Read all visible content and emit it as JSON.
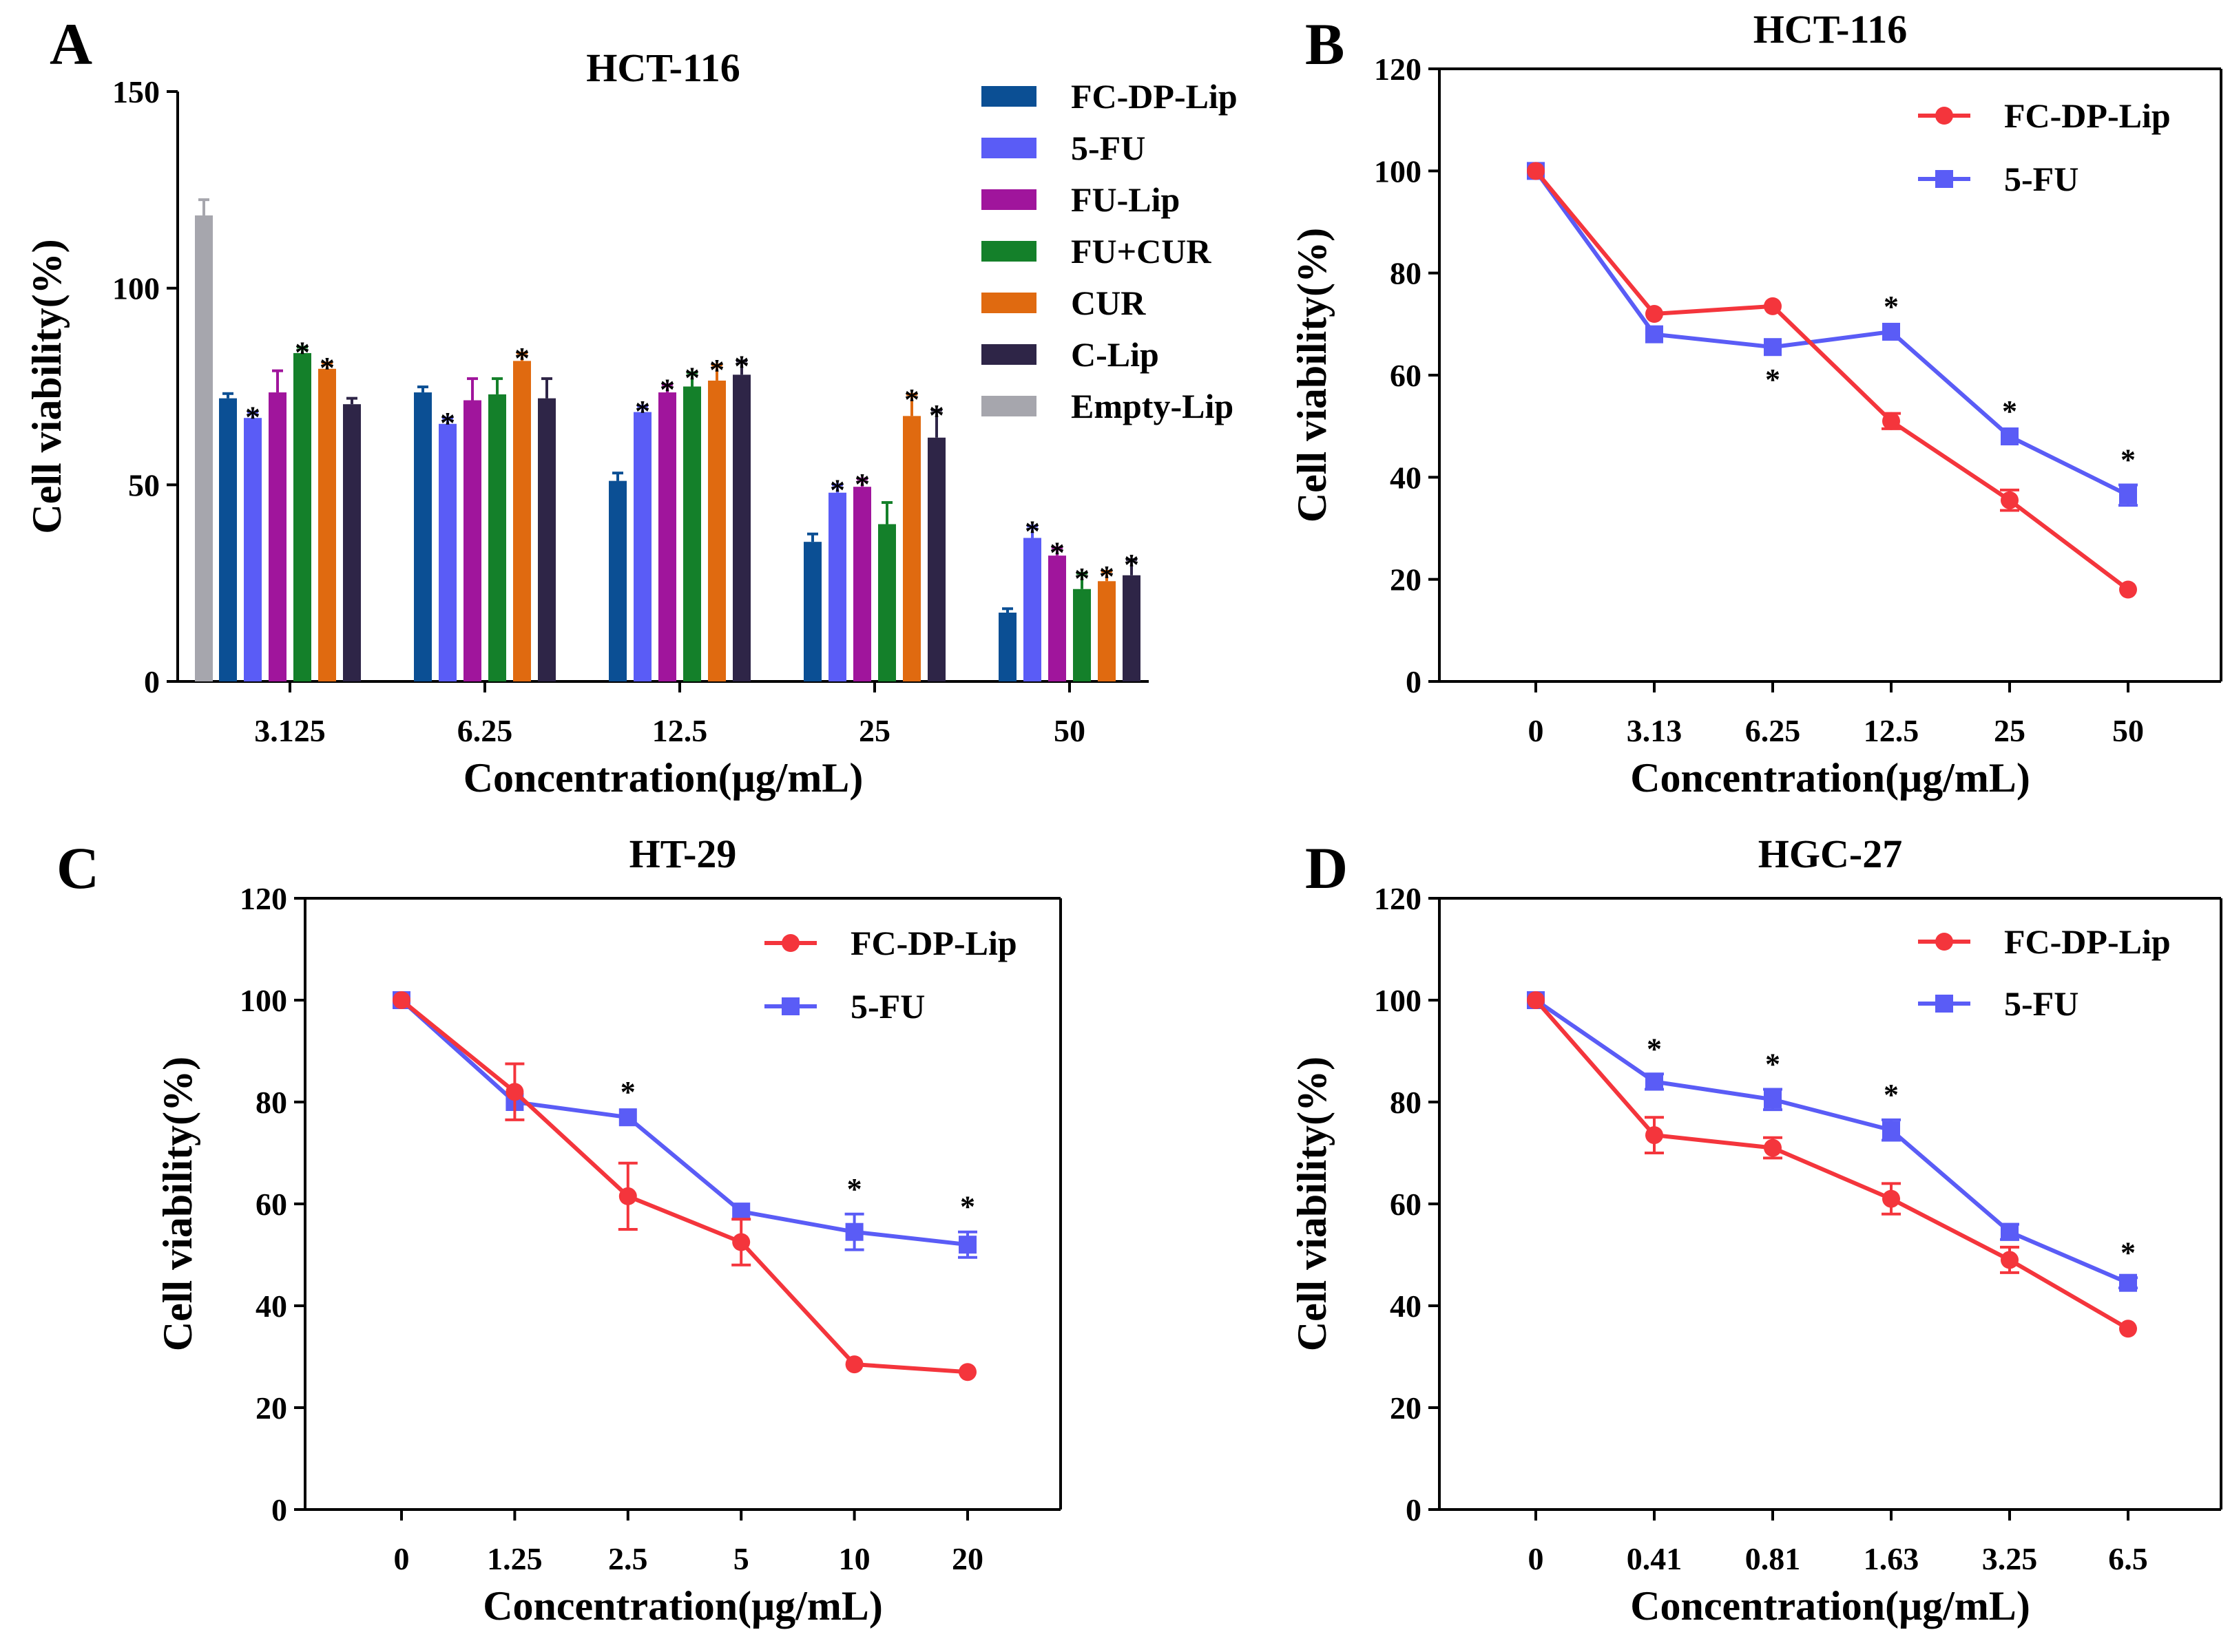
{
  "chart_data": [
    {
      "panel": "A",
      "type": "bar",
      "title": "HCT-116",
      "xlabel": "Concentration(μg/mL)",
      "ylabel": "Cell viability(%)",
      "ylim": [
        0,
        150
      ],
      "yticks": [
        0,
        50,
        100,
        150
      ],
      "categories": [
        "3.125",
        "6.25",
        "12.5",
        "25",
        "50"
      ],
      "legend_position": "top-right",
      "series": [
        {
          "name": "FC-DP-Lip",
          "color": "#0b4f94",
          "values": [
            72,
            73.5,
            51,
            35.5,
            17.5
          ],
          "errors": [
            1.2,
            1.4,
            2,
            2,
            1
          ],
          "significant": [
            false,
            false,
            false,
            false,
            false
          ]
        },
        {
          "name": "5-FU",
          "color": "#5a5cf6",
          "values": [
            67,
            65.5,
            68.5,
            48,
            36.5
          ],
          "errors": [
            1.5,
            1.5,
            1.5,
            2,
            3
          ],
          "significant": [
            true,
            true,
            true,
            true,
            true
          ]
        },
        {
          "name": "FU-Lip",
          "color": "#a0159c",
          "values": [
            73.5,
            71.5,
            73.5,
            49.5,
            32
          ],
          "errors": [
            5.5,
            5.5,
            2,
            2,
            2
          ],
          "significant": [
            false,
            false,
            true,
            true,
            true
          ]
        },
        {
          "name": "FU+CUR",
          "color": "#14802a",
          "values": [
            83.5,
            73,
            75,
            40,
            23.5
          ],
          "errors": [
            1.5,
            4,
            3.5,
            5.5,
            4
          ],
          "significant": [
            true,
            false,
            true,
            false,
            true
          ]
        },
        {
          "name": "CUR",
          "color": "#e06a10",
          "values": [
            79.5,
            81.5,
            76.5,
            67.5,
            25.5
          ],
          "errors": [
            1.5,
            2,
            4,
            5.5,
            2.5
          ],
          "significant": [
            true,
            true,
            true,
            true,
            true
          ]
        },
        {
          "name": "C-Lip",
          "color": "#2e2547",
          "values": [
            70.5,
            72,
            78,
            62,
            27
          ],
          "errors": [
            1.5,
            5,
            3.5,
            7,
            4
          ],
          "significant": [
            false,
            false,
            true,
            true,
            true
          ]
        }
      ],
      "extra_bars": [
        {
          "name": "Empty-Lip",
          "color": "#a6a6ad",
          "value": 118.5,
          "error": 4
        }
      ],
      "significance_marker": "*"
    },
    {
      "panel": "B",
      "type": "line",
      "title": "HCT-116",
      "xlabel": "Concentration(μg/mL)",
      "ylabel": "Cell viability(%)",
      "ylim": [
        0,
        120
      ],
      "yticks": [
        0,
        20,
        40,
        60,
        80,
        100,
        120
      ],
      "categories": [
        "0",
        "3.13",
        "6.25",
        "12.5",
        "25",
        "50"
      ],
      "legend_position": "top-right",
      "series": [
        {
          "name": "FC-DP-Lip",
          "color": "#f4353c",
          "marker": "circle",
          "values": [
            100,
            72,
            73.5,
            51,
            35.5,
            18
          ],
          "errors": [
            0,
            0,
            0,
            1.5,
            2,
            0
          ],
          "significant": [
            false,
            false,
            false,
            false,
            false,
            false
          ]
        },
        {
          "name": "5-FU",
          "color": "#5a5cf6",
          "marker": "square",
          "values": [
            100,
            68,
            65.5,
            68.5,
            48,
            36.5
          ],
          "errors": [
            0,
            0,
            0,
            0,
            0,
            2
          ],
          "significant": [
            false,
            false,
            true,
            true,
            true,
            true
          ],
          "star_below": [
            false,
            false,
            true,
            false,
            false,
            false
          ]
        }
      ],
      "significance_marker": "*"
    },
    {
      "panel": "C",
      "type": "line",
      "title": "HT-29",
      "xlabel": "Concentration(μg/mL)",
      "ylabel": "Cell viability(%)",
      "ylim": [
        0,
        120
      ],
      "yticks": [
        0,
        20,
        40,
        60,
        80,
        100,
        120
      ],
      "categories": [
        "0",
        "1.25",
        "2.5",
        "5",
        "10",
        "20"
      ],
      "legend_position": "top-right",
      "series": [
        {
          "name": "FC-DP-Lip",
          "color": "#f4353c",
          "marker": "circle",
          "values": [
            100,
            82,
            61.5,
            52.5,
            28.5,
            27
          ],
          "errors": [
            0,
            5.5,
            6.5,
            4.5,
            0,
            0
          ],
          "significant": [
            false,
            false,
            false,
            false,
            false,
            false
          ]
        },
        {
          "name": "5-FU",
          "color": "#5a5cf6",
          "marker": "square",
          "values": [
            100,
            80,
            77,
            58.5,
            54.5,
            52
          ],
          "errors": [
            0,
            0,
            0,
            0,
            3.5,
            2.5
          ],
          "significant": [
            false,
            false,
            true,
            false,
            true,
            true
          ]
        }
      ],
      "significance_marker": "*"
    },
    {
      "panel": "D",
      "type": "line",
      "title": "HGC-27",
      "xlabel": "Concentration(μg/mL)",
      "ylabel": "Cell viability(%)",
      "ylim": [
        0,
        120
      ],
      "yticks": [
        0,
        20,
        40,
        60,
        80,
        100,
        120
      ],
      "categories": [
        "0",
        "0.41",
        "0.81",
        "1.63",
        "3.25",
        "6.5"
      ],
      "legend_position": "top-right",
      "series": [
        {
          "name": "FC-DP-Lip",
          "color": "#f4353c",
          "marker": "circle",
          "values": [
            100,
            73.5,
            71,
            61,
            49,
            35.5
          ],
          "errors": [
            0,
            3.5,
            2,
            3,
            2.5,
            0
          ],
          "significant": [
            false,
            false,
            false,
            false,
            false,
            false
          ]
        },
        {
          "name": "5-FU",
          "color": "#5a5cf6",
          "marker": "square",
          "values": [
            100,
            84,
            80.5,
            74.5,
            54.5,
            44.5
          ],
          "errors": [
            0,
            1.5,
            2,
            2,
            1.5,
            1
          ],
          "significant": [
            false,
            true,
            true,
            true,
            false,
            true
          ]
        }
      ],
      "significance_marker": "*"
    }
  ]
}
